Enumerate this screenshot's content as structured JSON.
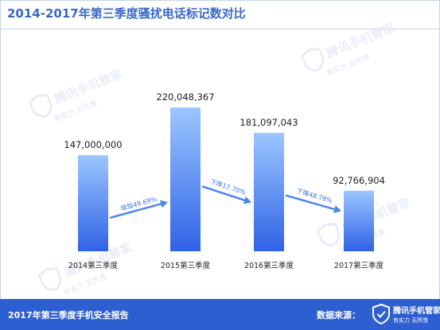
{
  "title": "2014-2017年第三季度骚扰电话标记数对比",
  "watermark": {
    "brand": "腾讯手机管家",
    "slogan": "有实力  无所畏"
  },
  "footer": {
    "report": "2017年第三季度手机安全报告",
    "source_label": "数据来源：",
    "brand": "腾讯手机管家",
    "slogan": "有实力 无所畏"
  },
  "colors": {
    "accent": "#2e5fd0",
    "bar_top": "#9cc6ff",
    "bar_bottom": "#2f62e6",
    "arrow": "#4a86ee"
  },
  "chart_data": {
    "type": "bar",
    "categories": [
      "2014第三季度",
      "2015第三季度",
      "2016第三季度",
      "2017第三季度"
    ],
    "values": [
      147000000,
      220048367,
      181097043,
      92766904
    ],
    "value_labels": [
      "147,000,000",
      "220,048,367",
      "181,097,043",
      "92,766,904"
    ],
    "changes": [
      "增加49.69%",
      "下降17.70%",
      "下降48.78%"
    ],
    "ylim": [
      0,
      260000000
    ],
    "grid": false
  }
}
